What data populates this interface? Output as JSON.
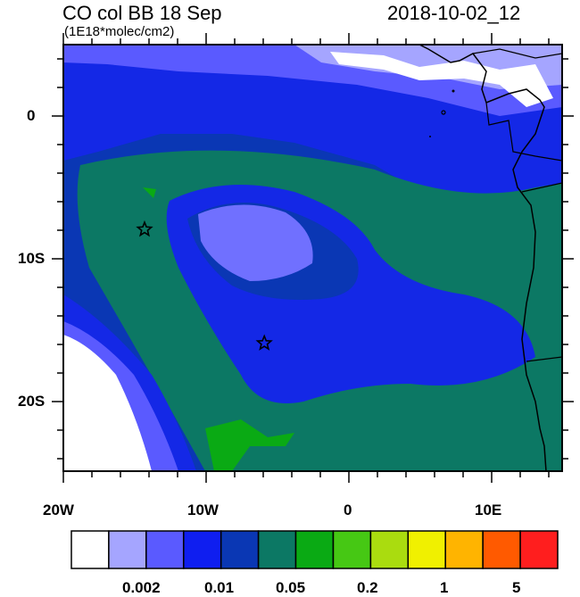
{
  "header": {
    "title": "CO col BB 18 Sep",
    "units": "(1E18*molec/cm2)",
    "datetime": "2018-10-02_12"
  },
  "map": {
    "lat_labels": [
      "0",
      "10S",
      "20S"
    ],
    "lon_labels": [
      "20W",
      "10W",
      "0",
      "10E"
    ],
    "extent": {
      "lon": [
        -20,
        15
      ],
      "lat": [
        -25,
        5
      ]
    },
    "markers": [
      {
        "name": "star-marker-1",
        "lon": -14.3,
        "lat": -8.0
      },
      {
        "name": "star-marker-2",
        "lon": -5.9,
        "lat": -16.0
      }
    ]
  },
  "colorbar": {
    "colors": [
      "#ffffff",
      "#a5a5ff",
      "#5a5aff",
      "#0f1ef0",
      "#0a37b4",
      "#0c7864",
      "#0aaa14",
      "#46c814",
      "#aadc0f",
      "#f0f000",
      "#ffb400",
      "#ff5a00",
      "#ff1e1e"
    ],
    "labels": [
      "0.002",
      "0.01",
      "0.05",
      "0.2",
      "1",
      "5"
    ]
  }
}
